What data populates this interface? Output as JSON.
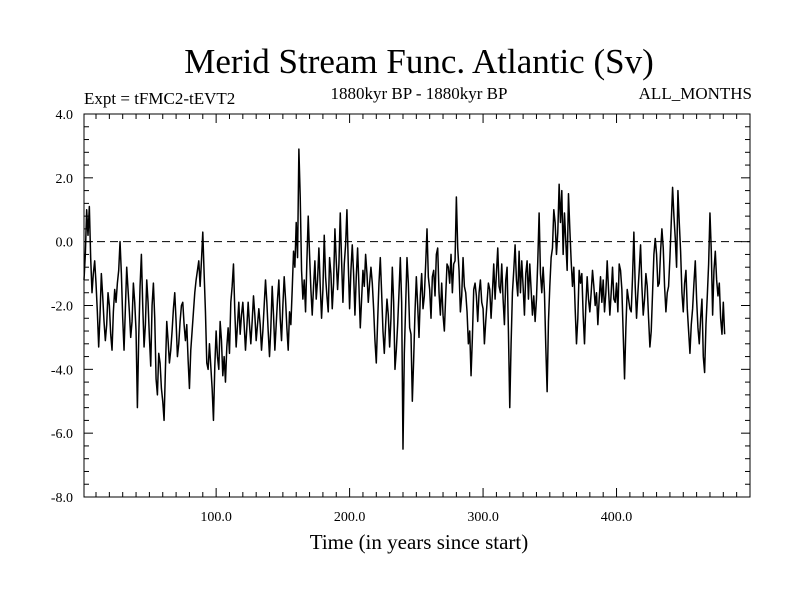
{
  "chart_data": {
    "type": "line",
    "title": "Merid Stream Func. Atlantic (Sv)",
    "subtitle": "1880kyr BP - 1880kyr BP",
    "experiment_label": "Expt = tFMC2-tEVT2",
    "period_label": "ALL_MONTHS",
    "xlabel": "Time (in years since start)",
    "ylabel": "",
    "xlim": [
      1,
      500
    ],
    "ylim": [
      -8,
      4
    ],
    "x_ticks": [
      100,
      200,
      300,
      400
    ],
    "x_tick_labels": [
      "100.0",
      "200.0",
      "300.0",
      "400.0"
    ],
    "y_ticks": [
      4,
      2,
      0,
      -2,
      -4,
      -6,
      -8
    ],
    "y_tick_labels": [
      "4.0",
      "2.0",
      "0.0",
      "-2.0",
      "-4.0",
      "-6.0",
      "-8.0"
    ],
    "reference_line": {
      "y": 0,
      "style": "dashed"
    },
    "series": [
      {
        "name": "Merid Stream Func. Atlantic",
        "x_start": 1,
        "x_step": 1,
        "values": [
          -1.2,
          -0.4,
          1.0,
          0.2,
          1.1,
          -0.5,
          -1.6,
          -1.0,
          -0.6,
          -1.3,
          -2.2,
          -3.3,
          -2.3,
          -1.0,
          -1.7,
          -2.5,
          -3.1,
          -2.6,
          -1.6,
          -2.0,
          -2.9,
          -3.4,
          -2.2,
          -1.5,
          -1.9,
          -1.3,
          -0.9,
          0.0,
          -1.0,
          -2.4,
          -3.4,
          -2.1,
          -0.8,
          -1.5,
          -2.2,
          -3.0,
          -2.5,
          -1.3,
          -1.9,
          -2.8,
          -5.2,
          -3.0,
          -1.4,
          -0.4,
          -2.0,
          -3.3,
          -2.6,
          -1.2,
          -1.9,
          -3.0,
          -3.9,
          -2.0,
          -1.3,
          -2.4,
          -4.3,
          -4.8,
          -3.5,
          -3.8,
          -4.6,
          -5.0,
          -5.6,
          -4.0,
          -2.5,
          -3.1,
          -3.8,
          -3.4,
          -2.8,
          -2.1,
          -1.6,
          -2.5,
          -3.6,
          -3.2,
          -2.5,
          -2.0,
          -1.9,
          -2.6,
          -3.1,
          -2.6,
          -3.7,
          -4.6,
          -3.4,
          -2.8,
          -2.2,
          -1.6,
          -1.2,
          -0.9,
          -0.6,
          -1.4,
          -0.6,
          0.3,
          -1.0,
          -2.2,
          -3.8,
          -4.0,
          -3.2,
          -3.9,
          -4.6,
          -5.6,
          -3.9,
          -2.8,
          -3.6,
          -4.0,
          -2.5,
          -3.1,
          -4.2,
          -3.6,
          -4.4,
          -3.3,
          -2.7,
          -3.5,
          -1.9,
          -1.4,
          -0.7,
          -2.2,
          -3.3,
          -2.6,
          -1.9,
          -2.9,
          -2.3,
          -1.9,
          -2.6,
          -3.4,
          -2.7,
          -1.9,
          -2.6,
          -3.2,
          -2.5,
          -1.7,
          -2.3,
          -3.1,
          -2.6,
          -2.1,
          -2.6,
          -3.4,
          -2.8,
          -2.0,
          -1.2,
          -1.9,
          -2.8,
          -3.6,
          -2.7,
          -1.4,
          -2.3,
          -3.4,
          -2.6,
          -1.8,
          -1.2,
          -2.4,
          -3.1,
          -2.0,
          -1.1,
          -1.8,
          -2.7,
          -3.4,
          -2.2,
          -2.6,
          -1.5,
          -0.3,
          -0.8,
          0.6,
          -0.5,
          2.9,
          1.4,
          -0.9,
          -1.8,
          -1.2,
          -2.2,
          -0.6,
          0.8,
          -0.4,
          -1.5,
          -2.3,
          -1.4,
          -0.6,
          -1.8,
          -1.2,
          -0.2,
          -1.4,
          -2.4,
          -1.5,
          0.2,
          -1.1,
          -1.7,
          -2.2,
          -0.5,
          -1.0,
          -2.1,
          -1.3,
          0.4,
          -0.6,
          -1.5,
          -0.7,
          0.9,
          -0.6,
          -1.9,
          -0.7,
          -0.1,
          1.0,
          -0.7,
          -2.1,
          -0.9,
          -0.1,
          -1.0,
          -2.3,
          -1.1,
          -0.2,
          -1.4,
          -2.7,
          -1.8,
          -0.9,
          -1.4,
          -0.4,
          -1.0,
          -1.9,
          -1.3,
          -0.8,
          -1.3,
          -2.1,
          -3.1,
          -3.8,
          -2.5,
          -1.3,
          -0.5,
          -1.6,
          -2.8,
          -3.5,
          -2.6,
          -1.8,
          -2.3,
          -3.3,
          -2.4,
          -0.8,
          -1.9,
          -4.0,
          -3.4,
          -2.6,
          -1.6,
          -0.5,
          -1.9,
          -6.5,
          -3.5,
          -2.0,
          -0.5,
          -1.3,
          -2.7,
          -2.9,
          -5.0,
          -3.7,
          -2.2,
          -1.1,
          -2.0,
          -3.0,
          -1.7,
          -1.0,
          -2.1,
          -1.7,
          -0.7,
          0.4,
          -1.1,
          -1.5,
          -2.4,
          -1.1,
          -0.9,
          -1.7,
          -0.4,
          -0.2,
          -1.6,
          -2.3,
          -1.3,
          -2.3,
          -2.8,
          -1.7,
          -0.7,
          -0.8,
          -1.3,
          -0.4,
          -1.6,
          -0.7,
          -0.6,
          1.4,
          -0.2,
          -0.9,
          -2.2,
          -1.7,
          -0.5,
          -1.4,
          -1.6,
          -2.2,
          -3.2,
          -2.8,
          -4.2,
          -3.0,
          -1.5,
          -1.3,
          -1.7,
          -2.5,
          -1.6,
          -1.2,
          -1.9,
          -2.1,
          -3.2,
          -2.5,
          -1.9,
          -1.3,
          -1.5,
          -2.4,
          -1.6,
          -0.7,
          -1.8,
          -1.0,
          -0.2,
          -1.4,
          -1.6,
          -0.7,
          -1.8,
          -2.6,
          -1.2,
          -0.8,
          -2.8,
          -5.2,
          -3.2,
          -1.6,
          -0.9,
          -0.1,
          -1.2,
          -1.7,
          -0.3,
          -1.6,
          -0.6,
          -1.4,
          -2.3,
          -1.0,
          -0.6,
          -1.8,
          -0.7,
          -1.5,
          -2.3,
          -1.7,
          -2.5,
          -1.8,
          -0.6,
          0.9,
          -1.0,
          -1.6,
          -0.8,
          -1.6,
          -3.3,
          -4.7,
          -2.5,
          -1.4,
          -0.5,
          -0.2,
          1.0,
          0.6,
          -0.4,
          0.3,
          1.8,
          0.6,
          1.6,
          -0.4,
          0.9,
          0.0,
          -0.9,
          1.5,
          0.4,
          -0.6,
          -1.4,
          -0.8,
          -2.1,
          -3.2,
          -2.4,
          -0.9,
          -1.3,
          -1.0,
          -2.3,
          -3.2,
          -2.0,
          -1.1,
          -1.8,
          -2.2,
          -1.6,
          -0.9,
          -1.4,
          -2.0,
          -1.6,
          -2.6,
          -1.8,
          -1.1,
          -1.9,
          -1.2,
          -2.2,
          -1.6,
          -0.6,
          -1.5,
          -2.3,
          -1.6,
          -0.8,
          -1.8,
          -1.9,
          -1.3,
          -2.2,
          -0.7,
          -0.9,
          -1.5,
          -2.9,
          -4.3,
          -2.7,
          -1.5,
          -1.8,
          -2.1,
          -2.2,
          -1.1,
          0.3,
          -1.4,
          -2.4,
          -1.6,
          -0.9,
          -0.1,
          -1.4,
          -2.3,
          -1.8,
          -1.0,
          -1.4,
          -2.4,
          -3.3,
          -2.8,
          -1.6,
          -0.4,
          0.1,
          -0.4,
          -1.4,
          -1.3,
          -0.3,
          0.4,
          -0.2,
          -1.4,
          -2.2,
          -1.6,
          -1.4,
          -0.5,
          0.6,
          1.7,
          0.8,
          0.1,
          -0.8,
          1.6,
          0.6,
          -0.3,
          -1.6,
          -2.2,
          -1.3,
          -0.9,
          -2.1,
          -2.8,
          -3.5,
          -2.6,
          -2.1,
          -1.3,
          -0.6,
          -1.8,
          -2.7,
          -3.2,
          -2.4,
          -1.8,
          -3.6,
          -4.1,
          -2.6,
          -1.7,
          -0.7,
          0.9,
          -0.3,
          -2.3,
          -0.9,
          -0.3,
          -1.2,
          -1.7,
          -1.3,
          -2.4,
          -2.9,
          -1.9,
          -2.9
        ]
      }
    ]
  }
}
